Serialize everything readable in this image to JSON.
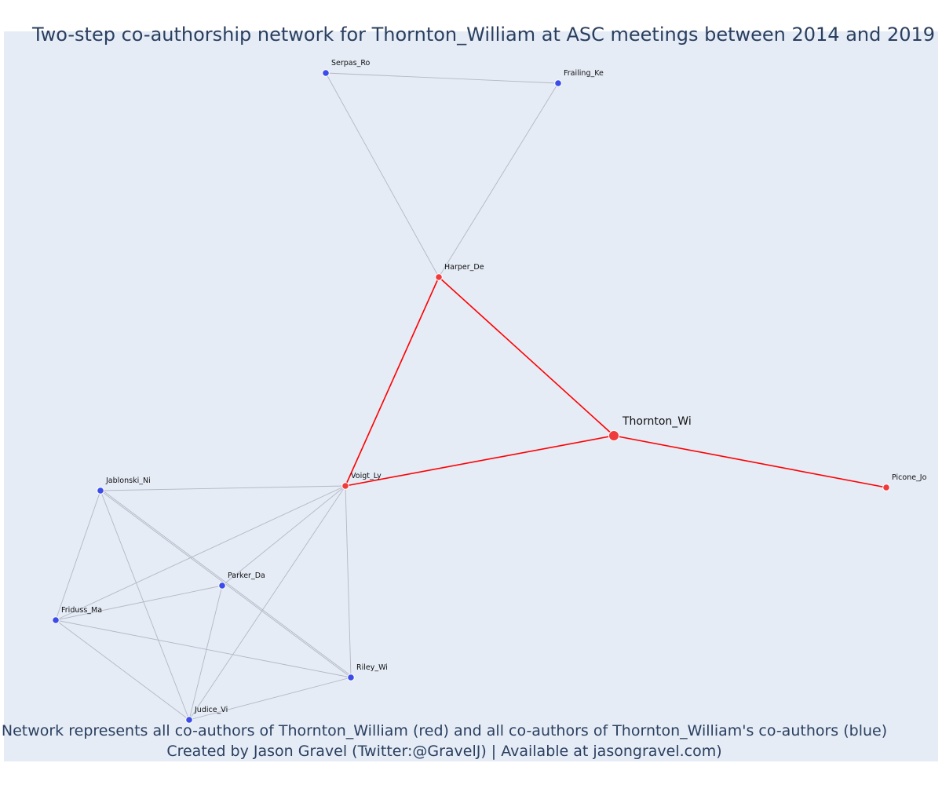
{
  "title": "Two-step co-authorship network for Thornton_William at ASC meetings between 2014 and 2019",
  "caption": {
    "line1": "Network represents all co-authors of Thornton_William (red) and all co-authors of Thornton_William's co-authors (blue)",
    "line2": "Created by Jason Gravel (Twitter:@GravelJ) | Available at jasongravel.com)"
  },
  "colors": {
    "background": "#e5ecf6",
    "coauthor": "#ef3b3b",
    "second_step": "#3b4ce8",
    "red_edge": "#ff0000",
    "gray_edge": "#b4b8c4",
    "node_outline": "#ffffff"
  },
  "nodes": [
    {
      "id": "Thornton_Wi",
      "group": "focal",
      "label": "Thornton_Wi"
    },
    {
      "id": "Harper_De",
      "group": "coauthor",
      "label": "Harper_De"
    },
    {
      "id": "Voigt_Ly",
      "group": "coauthor",
      "label": "Voigt_Ly"
    },
    {
      "id": "Picone_Jo",
      "group": "coauthor",
      "label": "Picone_Jo"
    },
    {
      "id": "Serpas_Ro",
      "group": "second_step",
      "label": "Serpas_Ro"
    },
    {
      "id": "Frailing_Ke",
      "group": "second_step",
      "label": "Frailing_Ke"
    },
    {
      "id": "Jablonski_Ni",
      "group": "second_step",
      "label": "Jablonski_Ni"
    },
    {
      "id": "Parker_Da",
      "group": "second_step",
      "label": "Parker_Da"
    },
    {
      "id": "Friduss_Ma",
      "group": "second_step",
      "label": "Friduss_Ma"
    },
    {
      "id": "Riley_Wi",
      "group": "second_step",
      "label": "Riley_Wi"
    },
    {
      "id": "Judice_Vi",
      "group": "second_step",
      "label": "Judice_Vi"
    }
  ],
  "edges": [
    {
      "source": "Thornton_Wi",
      "target": "Harper_De",
      "kind": "red"
    },
    {
      "source": "Thornton_Wi",
      "target": "Voigt_Ly",
      "kind": "red"
    },
    {
      "source": "Thornton_Wi",
      "target": "Picone_Jo",
      "kind": "red"
    },
    {
      "source": "Harper_De",
      "target": "Voigt_Ly",
      "kind": "red"
    },
    {
      "source": "Serpas_Ro",
      "target": "Frailing_Ke",
      "kind": "gray"
    },
    {
      "source": "Serpas_Ro",
      "target": "Harper_De",
      "kind": "gray"
    },
    {
      "source": "Frailing_Ke",
      "target": "Harper_De",
      "kind": "gray"
    },
    {
      "source": "Voigt_Ly",
      "target": "Jablonski_Ni",
      "kind": "gray"
    },
    {
      "source": "Voigt_Ly",
      "target": "Parker_Da",
      "kind": "gray"
    },
    {
      "source": "Voigt_Ly",
      "target": "Friduss_Ma",
      "kind": "gray"
    },
    {
      "source": "Voigt_Ly",
      "target": "Riley_Wi",
      "kind": "gray"
    },
    {
      "source": "Voigt_Ly",
      "target": "Judice_Vi",
      "kind": "gray"
    },
    {
      "source": "Jablonski_Ni",
      "target": "Friduss_Ma",
      "kind": "gray"
    },
    {
      "source": "Jablonski_Ni",
      "target": "Judice_Vi",
      "kind": "gray"
    },
    {
      "source": "Jablonski_Ni",
      "target": "Riley_Wi",
      "kind": "gray"
    },
    {
      "source": "Jablonski_Ni",
      "target": "Riley_Wi",
      "kind": "gray"
    },
    {
      "source": "Friduss_Ma",
      "target": "Parker_Da",
      "kind": "gray"
    },
    {
      "source": "Friduss_Ma",
      "target": "Riley_Wi",
      "kind": "gray"
    },
    {
      "source": "Friduss_Ma",
      "target": "Judice_Vi",
      "kind": "gray"
    },
    {
      "source": "Parker_Da",
      "target": "Judice_Vi",
      "kind": "gray"
    },
    {
      "source": "Judice_Vi",
      "target": "Riley_Wi",
      "kind": "gray"
    }
  ]
}
